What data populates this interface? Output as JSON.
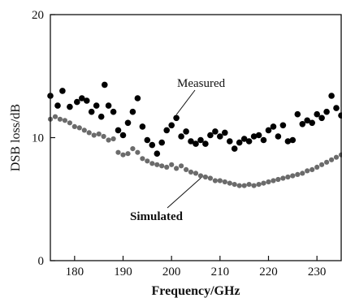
{
  "chart_data": {
    "type": "scatter",
    "title": "",
    "xlabel": "Frequency/GHz",
    "ylabel": "DSB loss/dB",
    "xlim": [
      175,
      235
    ],
    "ylim": [
      0,
      20
    ],
    "xticks": [
      180,
      190,
      200,
      210,
      220,
      230
    ],
    "yticks": [
      0,
      10,
      20
    ],
    "grid": false,
    "legend": "none",
    "annotations": [
      {
        "text": "Measured",
        "target_series": "measured"
      },
      {
        "text": "Simulated",
        "target_series": "simulated"
      }
    ],
    "series": [
      {
        "key": "measured",
        "color": "#000000",
        "marker": "large-dot",
        "x": [
          175.0,
          176.5,
          177.5,
          179.0,
          180.5,
          181.5,
          182.5,
          183.5,
          184.5,
          185.5,
          186.2,
          187.0,
          188.0,
          189.0,
          190.0,
          191.0,
          192.0,
          193.0,
          194.0,
          195.0,
          196.0,
          197.0,
          198.0,
          199.0,
          200.0,
          201.0,
          202.0,
          203.0,
          204.0,
          205.0,
          206.0,
          207.0,
          208.0,
          209.0,
          210.0,
          211.0,
          212.0,
          213.0,
          214.0,
          215.0,
          216.0,
          217.0,
          218.0,
          219.0,
          220.0,
          221.0,
          222.0,
          223.0,
          224.0,
          225.0,
          226.0,
          227.0,
          228.0,
          229.0,
          230.0,
          231.0,
          232.0,
          233.0,
          234.0,
          235.0
        ],
        "y": [
          13.4,
          12.6,
          13.8,
          12.5,
          12.9,
          13.2,
          13.0,
          12.1,
          12.6,
          11.7,
          14.3,
          12.6,
          12.1,
          10.6,
          10.2,
          11.2,
          12.1,
          13.2,
          10.9,
          9.8,
          9.4,
          8.7,
          9.6,
          10.6,
          11.0,
          11.6,
          10.1,
          10.5,
          9.7,
          9.5,
          9.8,
          9.5,
          10.2,
          10.5,
          10.1,
          10.4,
          9.7,
          9.1,
          9.6,
          9.9,
          9.7,
          10.1,
          10.2,
          9.8,
          10.6,
          10.9,
          10.1,
          11.0,
          9.7,
          9.8,
          11.9,
          11.1,
          11.4,
          11.2,
          11.9,
          11.6,
          12.1,
          13.4,
          12.4,
          11.8
        ]
      },
      {
        "key": "simulated",
        "color": "#6b6b6b",
        "marker": "small-dot",
        "x": [
          175,
          176,
          177,
          178,
          179,
          180,
          181,
          182,
          183,
          184,
          185,
          186,
          187,
          188,
          189,
          190,
          191,
          192,
          193,
          194,
          195,
          196,
          197,
          198,
          199,
          200,
          201,
          202,
          203,
          204,
          205,
          206,
          207,
          208,
          209,
          210,
          211,
          212,
          213,
          214,
          215,
          216,
          217,
          218,
          219,
          220,
          221,
          222,
          223,
          224,
          225,
          226,
          227,
          228,
          229,
          230,
          231,
          232,
          233,
          234,
          235
        ],
        "y": [
          11.5,
          11.7,
          11.5,
          11.4,
          11.2,
          10.9,
          10.8,
          10.6,
          10.4,
          10.2,
          10.3,
          10.1,
          9.8,
          9.9,
          8.8,
          8.6,
          8.7,
          9.1,
          8.8,
          8.3,
          8.1,
          7.9,
          7.8,
          7.7,
          7.6,
          7.8,
          7.5,
          7.7,
          7.4,
          7.2,
          7.1,
          6.9,
          6.8,
          6.7,
          6.5,
          6.5,
          6.4,
          6.3,
          6.2,
          6.1,
          6.1,
          6.2,
          6.1,
          6.2,
          6.3,
          6.4,
          6.5,
          6.6,
          6.7,
          6.8,
          6.9,
          7.0,
          7.1,
          7.3,
          7.4,
          7.6,
          7.8,
          8.0,
          8.2,
          8.4,
          8.6
        ]
      }
    ]
  }
}
